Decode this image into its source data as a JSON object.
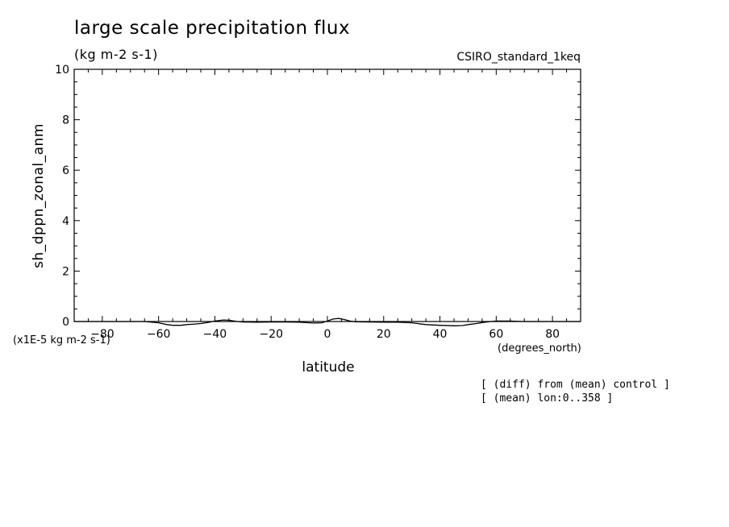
{
  "title": "large scale precipitation flux",
  "units": "(kg m-2 s-1)",
  "dataset": "CSIRO_standard_1keq",
  "y_scale_note": "(x1E-5 kg m-2 s-1)",
  "x_units": "(degrees_north)",
  "notes": [
    "[ (diff) from (mean) control ]",
    "[ (mean) lon:0..358 ]"
  ],
  "chart_data": {
    "type": "line",
    "title": "large scale precipitation flux",
    "xlabel": "latitude",
    "ylabel": "sh_dppn_zonal_anm",
    "xlim": [
      -90,
      90
    ],
    "ylim": [
      0,
      10
    ],
    "x_ticks": [
      -80,
      -60,
      -40,
      -20,
      0,
      20,
      40,
      60,
      80
    ],
    "y_ticks": [
      0,
      2,
      4,
      6,
      8,
      10
    ],
    "grid": false,
    "x": [
      -90,
      -85,
      -80,
      -75,
      -70,
      -65,
      -60,
      -57,
      -55,
      -52,
      -50,
      -47,
      -45,
      -42,
      -40,
      -37,
      -35,
      -32,
      -30,
      -25,
      -20,
      -15,
      -10,
      -5,
      -2,
      0,
      2,
      4,
      6,
      8,
      10,
      15,
      20,
      25,
      30,
      35,
      40,
      45,
      48,
      50,
      53,
      55,
      58,
      60,
      65,
      70,
      75,
      80,
      85,
      90
    ],
    "y": [
      0.0,
      0.0,
      0.0,
      0.0,
      0.0,
      0.0,
      -0.05,
      -0.12,
      -0.15,
      -0.15,
      -0.12,
      -0.1,
      -0.08,
      -0.03,
      0.02,
      0.06,
      0.05,
      0.0,
      -0.02,
      -0.03,
      -0.02,
      -0.02,
      -0.03,
      -0.06,
      -0.05,
      0.02,
      0.1,
      0.12,
      0.08,
      0.02,
      -0.01,
      -0.02,
      -0.03,
      -0.03,
      -0.05,
      -0.12,
      -0.15,
      -0.17,
      -0.16,
      -0.12,
      -0.08,
      -0.04,
      0.0,
      0.02,
      0.02,
      0.0,
      0.0,
      0.0,
      0.0,
      0.0
    ]
  }
}
